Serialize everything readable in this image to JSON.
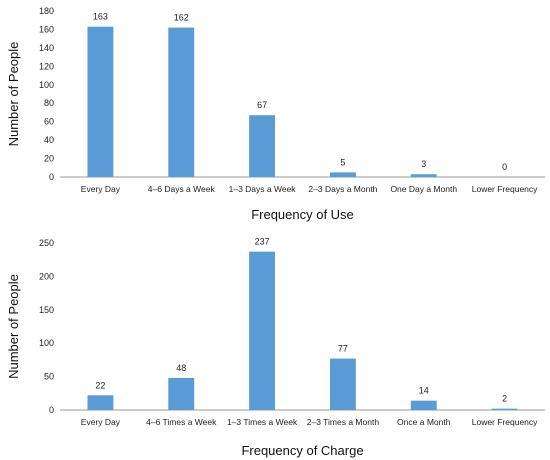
{
  "chart_data": [
    {
      "type": "bar",
      "title": "",
      "xlabel": "Frequency of Use",
      "ylabel": "Number of People",
      "categories": [
        "Every Day",
        "4–6 Days a Week",
        "1–3 Days a Week",
        "2–3 Days a Month",
        "One Day a Month",
        "Lower Frequency"
      ],
      "values": [
        163,
        162,
        67,
        5,
        3,
        0
      ],
      "ylim": [
        0,
        180
      ],
      "yticks": [
        0,
        20,
        40,
        60,
        80,
        100,
        120,
        140,
        160,
        180
      ],
      "color": "#5b9bd5",
      "grid": false
    },
    {
      "type": "bar",
      "title": "",
      "xlabel": "Frequency of Charge",
      "ylabel": "Number of People",
      "categories": [
        "Every Day",
        "4–6 Times a Week",
        "1–3 Times a Week",
        "2–3 Times a Month",
        "Once a Month",
        "Lower Frequency"
      ],
      "values": [
        22,
        48,
        237,
        77,
        14,
        2
      ],
      "ylim": [
        0,
        250
      ],
      "yticks": [
        0,
        50,
        100,
        150,
        200,
        250
      ],
      "color": "#5b9bd5",
      "grid": false
    }
  ]
}
